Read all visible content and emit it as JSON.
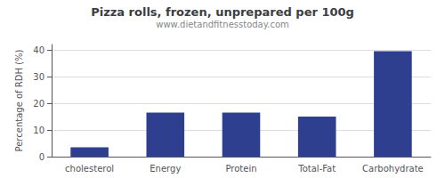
{
  "chart_data": {
    "type": "bar",
    "title": "Pizza rolls, frozen, unprepared per 100g",
    "subtitle": "www.dietandfitnesstoday.com",
    "categories": [
      "cholesterol",
      "Energy",
      "Protein",
      "Total-Fat",
      "Carbohydrate"
    ],
    "values": [
      3.5,
      16.5,
      16.5,
      15.0,
      39.5
    ],
    "color": "#2e3f8f",
    "ylabel": "Percentage of RDH (%)",
    "ylim": [
      0,
      42
    ],
    "yticks": [
      0,
      10,
      20,
      30,
      40
    ],
    "grid": true
  }
}
